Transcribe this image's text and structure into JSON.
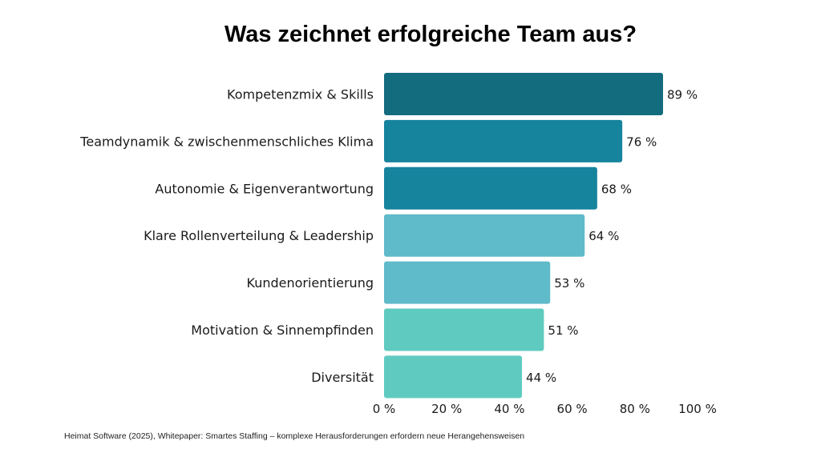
{
  "chart_data": {
    "type": "bar",
    "orientation": "horizontal",
    "title": "Was zeichnet erfolgreiche Team aus?",
    "categories": [
      "Kompetenzmix & Skills",
      "Teamdynamik & zwischenmenschliches Klima",
      "Autonomie & Eigenverantwortung",
      "Klare Rollenverteilung & Leadership",
      "Kundenorientierung",
      "Motivation & Sinnempfinden",
      "Diversität"
    ],
    "values": [
      89,
      76,
      68,
      64,
      53,
      51,
      44
    ],
    "value_labels": [
      "89 %",
      "76 %",
      "68 %",
      "64 %",
      "53 %",
      "51 %",
      "44 %"
    ],
    "colors": [
      "#136c7e",
      "#17849e",
      "#17849e",
      "#5fbac9",
      "#5fbac9",
      "#5fcbc0",
      "#5fcbc0"
    ],
    "xlim": [
      0,
      100
    ],
    "xticks": [
      0,
      20,
      40,
      60,
      80,
      100
    ],
    "xtick_labels": [
      "0 %",
      "20 %",
      "40 %",
      "60 %",
      "80 %",
      "100 %"
    ],
    "xlabel": "",
    "ylabel": "",
    "grid": false
  },
  "source": "Heimat Software (2025), Whitepaper: Smartes Staffing – komplexe Herausforderungen erfordern neue Herangehensweisen"
}
